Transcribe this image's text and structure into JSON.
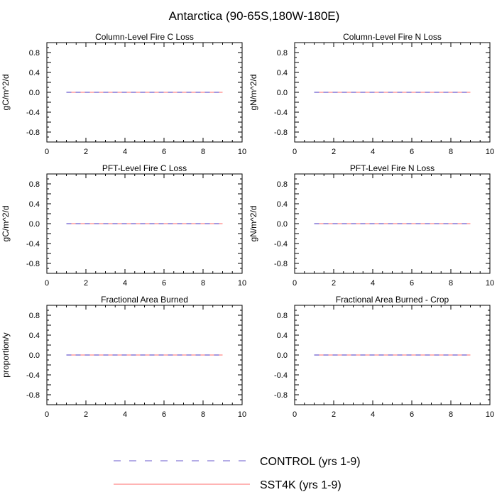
{
  "figure": {
    "title": "Antarctica (90-65S,180W-180E)"
  },
  "chart_data": [
    {
      "type": "line",
      "title": "Column-Level Fire C Loss",
      "xlabel": "",
      "ylabel": "gC/m^2/d",
      "xlim": [
        0,
        10
      ],
      "ylim": [
        -1,
        1
      ],
      "xticks": [
        "0",
        "2",
        "4",
        "6",
        "8",
        "10"
      ],
      "yticks": [
        "-0.8",
        "-0.4",
        "0.0",
        "0.4",
        "0.8"
      ],
      "x": [
        1,
        2,
        3,
        4,
        5,
        6,
        7,
        8,
        9
      ],
      "series": [
        {
          "name": "CONTROL (yrs 1-9)",
          "values": [
            0,
            0,
            0,
            0,
            0,
            0,
            0,
            0,
            0
          ]
        },
        {
          "name": "SST4K (yrs 1-9)",
          "values": [
            0,
            0,
            0,
            0,
            0,
            0,
            0,
            0,
            0
          ]
        }
      ]
    },
    {
      "type": "line",
      "title": "Column-Level Fire N Loss",
      "xlabel": "",
      "ylabel": "gN/m^2/d",
      "xlim": [
        0,
        10
      ],
      "ylim": [
        -1,
        1
      ],
      "xticks": [
        "0",
        "2",
        "4",
        "6",
        "8",
        "10"
      ],
      "yticks": [
        "-0.8",
        "-0.4",
        "0.0",
        "0.4",
        "0.8"
      ],
      "x": [
        1,
        2,
        3,
        4,
        5,
        6,
        7,
        8,
        9
      ],
      "series": [
        {
          "name": "CONTROL (yrs 1-9)",
          "values": [
            0,
            0,
            0,
            0,
            0,
            0,
            0,
            0,
            0
          ]
        },
        {
          "name": "SST4K (yrs 1-9)",
          "values": [
            0,
            0,
            0,
            0,
            0,
            0,
            0,
            0,
            0
          ]
        }
      ]
    },
    {
      "type": "line",
      "title": "PFT-Level Fire C Loss",
      "xlabel": "",
      "ylabel": "gC/m^2/d",
      "xlim": [
        0,
        10
      ],
      "ylim": [
        -1,
        1
      ],
      "xticks": [
        "0",
        "2",
        "4",
        "6",
        "8",
        "10"
      ],
      "yticks": [
        "-0.8",
        "-0.4",
        "0.0",
        "0.4",
        "0.8"
      ],
      "x": [
        1,
        2,
        3,
        4,
        5,
        6,
        7,
        8,
        9
      ],
      "series": [
        {
          "name": "CONTROL (yrs 1-9)",
          "values": [
            0,
            0,
            0,
            0,
            0,
            0,
            0,
            0,
            0
          ]
        },
        {
          "name": "SST4K (yrs 1-9)",
          "values": [
            0,
            0,
            0,
            0,
            0,
            0,
            0,
            0,
            0
          ]
        }
      ]
    },
    {
      "type": "line",
      "title": "PFT-Level Fire N Loss",
      "xlabel": "",
      "ylabel": "gN/m^2/d",
      "xlim": [
        0,
        10
      ],
      "ylim": [
        -1,
        1
      ],
      "xticks": [
        "0",
        "2",
        "4",
        "6",
        "8",
        "10"
      ],
      "yticks": [
        "-0.8",
        "-0.4",
        "0.0",
        "0.4",
        "0.8"
      ],
      "x": [
        1,
        2,
        3,
        4,
        5,
        6,
        7,
        8,
        9
      ],
      "series": [
        {
          "name": "CONTROL (yrs 1-9)",
          "values": [
            0,
            0,
            0,
            0,
            0,
            0,
            0,
            0,
            0
          ]
        },
        {
          "name": "SST4K (yrs 1-9)",
          "values": [
            0,
            0,
            0,
            0,
            0,
            0,
            0,
            0,
            0
          ]
        }
      ]
    },
    {
      "type": "line",
      "title": "Fractional Area Burned",
      "xlabel": "",
      "ylabel": "proportion/y",
      "xlim": [
        0,
        10
      ],
      "ylim": [
        -1,
        1
      ],
      "xticks": [
        "0",
        "2",
        "4",
        "6",
        "8",
        "10"
      ],
      "yticks": [
        "-0.8",
        "-0.4",
        "0.0",
        "0.4",
        "0.8"
      ],
      "x": [
        1,
        2,
        3,
        4,
        5,
        6,
        7,
        8,
        9
      ],
      "series": [
        {
          "name": "CONTROL (yrs 1-9)",
          "values": [
            0,
            0,
            0,
            0,
            0,
            0,
            0,
            0,
            0
          ]
        },
        {
          "name": "SST4K (yrs 1-9)",
          "values": [
            0,
            0,
            0,
            0,
            0,
            0,
            0,
            0,
            0
          ]
        }
      ]
    },
    {
      "type": "line",
      "title": "Fractional Area Burned - Crop",
      "xlabel": "",
      "ylabel": "",
      "xlim": [
        0,
        10
      ],
      "ylim": [
        -1,
        1
      ],
      "xticks": [
        "0",
        "2",
        "4",
        "6",
        "8",
        "10"
      ],
      "yticks": [
        "-0.8",
        "-0.4",
        "0.0",
        "0.4",
        "0.8"
      ],
      "x": [
        1,
        2,
        3,
        4,
        5,
        6,
        7,
        8,
        9
      ],
      "series": [
        {
          "name": "CONTROL (yrs 1-9)",
          "values": [
            0,
            0,
            0,
            0,
            0,
            0,
            0,
            0,
            0
          ]
        },
        {
          "name": "SST4K (yrs 1-9)",
          "values": [
            0,
            0,
            0,
            0,
            0,
            0,
            0,
            0,
            0
          ]
        }
      ]
    }
  ],
  "legend": {
    "placement": "bottom-center",
    "entries": [
      {
        "label": "CONTROL (yrs 1-9)",
        "color": "#6a5acd",
        "style": "dashed"
      },
      {
        "label": "SST4K (yrs 1-9)",
        "color": "#ff6a6a",
        "style": "solid"
      }
    ]
  },
  "colors": {
    "control": "#6a5acd",
    "sst4k": "#ff6a6a"
  }
}
